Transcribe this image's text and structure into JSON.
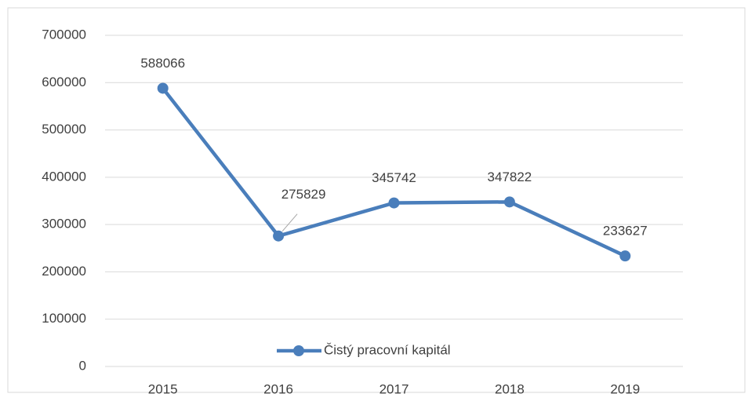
{
  "chart_data": {
    "type": "line",
    "categories": [
      "2015",
      "2016",
      "2017",
      "2018",
      "2019"
    ],
    "series": [
      {
        "name": "Čistý pracovní kapitál",
        "color": "#4a7ebb",
        "values": [
          588066,
          275829,
          345742,
          347822,
          233627
        ]
      }
    ],
    "ylim": [
      0,
      700000
    ],
    "yticks": [
      0,
      100000,
      200000,
      300000,
      400000,
      500000,
      600000,
      700000
    ],
    "grid": true,
    "legend": "bottom"
  }
}
